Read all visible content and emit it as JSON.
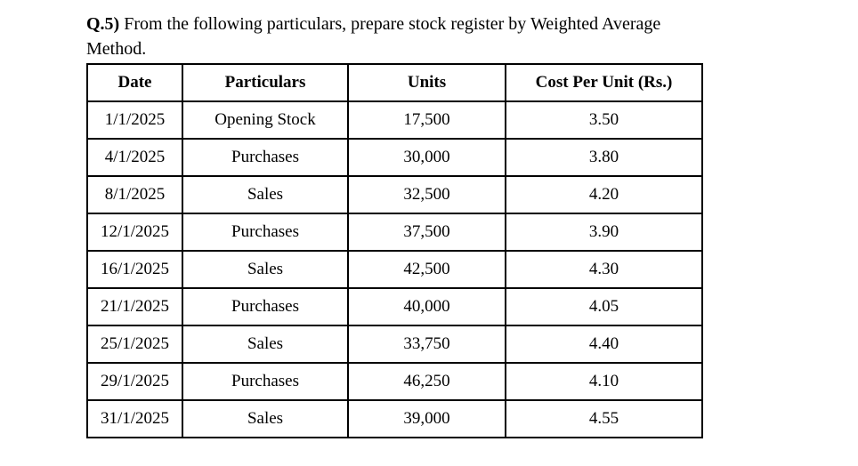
{
  "question": {
    "label": "Q.5)",
    "line1_rest": " From the following particulars, prepare stock register by Weighted Average",
    "line2": "Method."
  },
  "table": {
    "columns": [
      "Date",
      "Particulars",
      "Units",
      "Cost Per Unit (Rs.)"
    ],
    "rows": [
      [
        "1/1/2025",
        "Opening Stock",
        "17,500",
        "3.50"
      ],
      [
        "4/1/2025",
        "Purchases",
        "30,000",
        "3.80"
      ],
      [
        "8/1/2025",
        "Sales",
        "32,500",
        "4.20"
      ],
      [
        "12/1/2025",
        "Purchases",
        "37,500",
        "3.90"
      ],
      [
        "16/1/2025",
        "Sales",
        "42,500",
        "4.30"
      ],
      [
        "21/1/2025",
        "Purchases",
        "40,000",
        "4.05"
      ],
      [
        "25/1/2025",
        "Sales",
        "33,750",
        "4.40"
      ],
      [
        "29/1/2025",
        "Purchases",
        "46,250",
        "4.10"
      ],
      [
        "31/1/2025",
        "Sales",
        "39,000",
        "4.55"
      ]
    ]
  },
  "chart_data": {
    "type": "table",
    "title": "Q.5) From the following particulars, prepare stock register by Weighted Average Method.",
    "columns": [
      "Date",
      "Particulars",
      "Units",
      "Cost Per Unit (Rs.)"
    ],
    "rows": [
      {
        "date": "1/1/2025",
        "particulars": "Opening Stock",
        "units": 17500,
        "cost_per_unit": 3.5
      },
      {
        "date": "4/1/2025",
        "particulars": "Purchases",
        "units": 30000,
        "cost_per_unit": 3.8
      },
      {
        "date": "8/1/2025",
        "particulars": "Sales",
        "units": 32500,
        "cost_per_unit": 4.2
      },
      {
        "date": "12/1/2025",
        "particulars": "Purchases",
        "units": 37500,
        "cost_per_unit": 3.9
      },
      {
        "date": "16/1/2025",
        "particulars": "Sales",
        "units": 42500,
        "cost_per_unit": 4.3
      },
      {
        "date": "21/1/2025",
        "particulars": "Purchases",
        "units": 40000,
        "cost_per_unit": 4.05
      },
      {
        "date": "25/1/2025",
        "particulars": "Sales",
        "units": 33750,
        "cost_per_unit": 4.4
      },
      {
        "date": "29/1/2025",
        "particulars": "Purchases",
        "units": 46250,
        "cost_per_unit": 4.1
      },
      {
        "date": "31/1/2025",
        "particulars": "Sales",
        "units": 39000,
        "cost_per_unit": 4.55
      }
    ]
  }
}
